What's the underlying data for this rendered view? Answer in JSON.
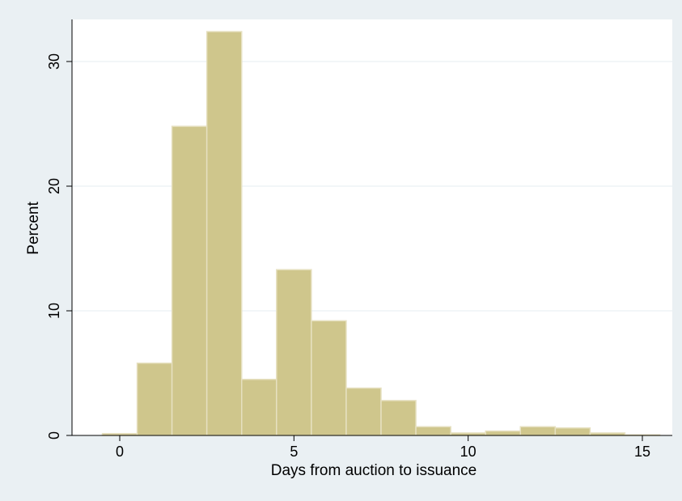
{
  "chart_data": {
    "type": "bar",
    "title": "",
    "xlabel": "Days from auction to issuance",
    "ylabel": "Percent",
    "x_ticks": [
      0,
      5,
      10,
      15
    ],
    "y_ticks": [
      0,
      10,
      20,
      30
    ],
    "xlim": [
      -1,
      15.6
    ],
    "ylim": [
      0,
      33.4
    ],
    "grid": "horizontal",
    "bin_width": 1,
    "bins": [
      {
        "x": 0,
        "value": 0.15
      },
      {
        "x": 1,
        "value": 5.8
      },
      {
        "x": 2,
        "value": 24.8
      },
      {
        "x": 3,
        "value": 32.4
      },
      {
        "x": 4,
        "value": 4.5
      },
      {
        "x": 5,
        "value": 13.3
      },
      {
        "x": 6,
        "value": 9.2
      },
      {
        "x": 7,
        "value": 3.8
      },
      {
        "x": 8,
        "value": 2.8
      },
      {
        "x": 9,
        "value": 0.7
      },
      {
        "x": 10,
        "value": 0.2
      },
      {
        "x": 11,
        "value": 0.35
      },
      {
        "x": 12,
        "value": 0.7
      },
      {
        "x": 13,
        "value": 0.6
      },
      {
        "x": 14,
        "value": 0.2
      },
      {
        "x": 15,
        "value": 0.05
      }
    ]
  },
  "colors": {
    "bar_fill": "#cfc68c",
    "bar_stroke": "#e6e0c0",
    "plot_background": "#ffffff",
    "outer_background": "#eaf0f3",
    "gridline": "#eaf0f3"
  }
}
